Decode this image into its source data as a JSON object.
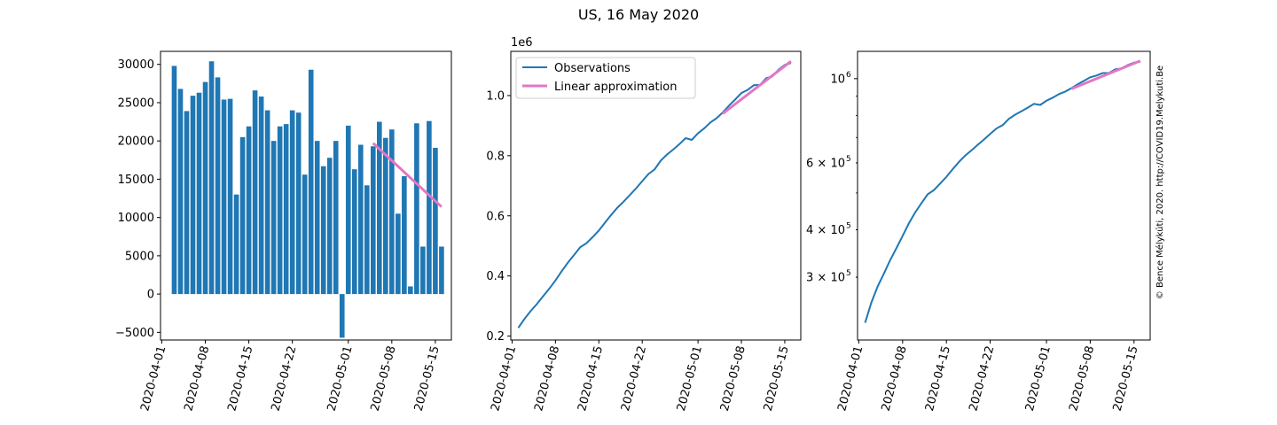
{
  "figure": {
    "suptitle": "US, 16 May 2020",
    "watermark": "© Bence Mélykúti, 2020. http://COVID19.Melykuti.Be"
  },
  "colors": {
    "observations": "#1f77b4",
    "approximation": "#e377c2",
    "watermark": "#c8c8c8"
  },
  "chart_data": [
    {
      "type": "bar",
      "title": "",
      "xlabel": "",
      "ylabel": "",
      "x_start": "2020-04-03",
      "x": [
        "2020-04-03",
        "2020-04-04",
        "2020-04-05",
        "2020-04-06",
        "2020-04-07",
        "2020-04-08",
        "2020-04-09",
        "2020-04-10",
        "2020-04-11",
        "2020-04-12",
        "2020-04-13",
        "2020-04-14",
        "2020-04-15",
        "2020-04-16",
        "2020-04-17",
        "2020-04-18",
        "2020-04-19",
        "2020-04-20",
        "2020-04-21",
        "2020-04-22",
        "2020-04-23",
        "2020-04-24",
        "2020-04-25",
        "2020-04-26",
        "2020-04-27",
        "2020-04-28",
        "2020-04-29",
        "2020-04-30",
        "2020-05-01",
        "2020-05-02",
        "2020-05-03",
        "2020-05-04",
        "2020-05-05",
        "2020-05-06",
        "2020-05-07",
        "2020-05-08",
        "2020-05-09",
        "2020-05-10",
        "2020-05-11",
        "2020-05-12",
        "2020-05-13",
        "2020-05-14",
        "2020-05-15",
        "2020-05-16"
      ],
      "values": [
        29800,
        26800,
        23900,
        25900,
        26300,
        27700,
        30400,
        28300,
        25400,
        25500,
        13000,
        20500,
        21900,
        26600,
        25800,
        24000,
        20000,
        21900,
        22200,
        24000,
        23700,
        15600,
        29300,
        20000,
        16700,
        17800,
        20000,
        -5700,
        22000,
        16300,
        19500,
        14200,
        19300,
        22500,
        20400,
        21500,
        10500,
        15400,
        1000,
        22300,
        6200,
        22600,
        19100,
        6200
      ],
      "trend": {
        "name": "",
        "x": [
          "2020-05-05",
          "2020-05-16"
        ],
        "values": [
          19700,
          11400
        ]
      },
      "ylim": [
        -6000,
        31700
      ],
      "xlim": [
        "2020-03-31T19:00",
        "2020-05-17T14:00"
      ],
      "yticks": [
        -5000,
        0,
        5000,
        10000,
        15000,
        20000,
        25000,
        30000
      ],
      "ytick_labels": [
        "−5000",
        "0",
        "5000",
        "10000",
        "15000",
        "20000",
        "25000",
        "30000"
      ],
      "xticks": [
        "2020-04-01",
        "2020-04-08",
        "2020-04-15",
        "2020-04-22",
        "2020-05-01",
        "2020-05-08",
        "2020-05-15"
      ],
      "xtick_labels": [
        "2020-04-01",
        "2020-04-08",
        "2020-04-15",
        "2020-04-22",
        "2020-05-01",
        "2020-05-08",
        "2020-05-15"
      ],
      "grid": false
    },
    {
      "type": "line",
      "title": "",
      "xlabel": "",
      "ylabel": "",
      "y_offset_label": "1e6",
      "series": [
        {
          "name": "Observations",
          "x": [
            "2020-04-02",
            "2020-04-03",
            "2020-04-04",
            "2020-04-05",
            "2020-04-06",
            "2020-04-07",
            "2020-04-08",
            "2020-04-09",
            "2020-04-10",
            "2020-04-11",
            "2020-04-12",
            "2020-04-13",
            "2020-04-14",
            "2020-04-15",
            "2020-04-16",
            "2020-04-17",
            "2020-04-18",
            "2020-04-19",
            "2020-04-20",
            "2020-04-21",
            "2020-04-22",
            "2020-04-23",
            "2020-04-24",
            "2020-04-25",
            "2020-04-26",
            "2020-04-27",
            "2020-04-28",
            "2020-04-29",
            "2020-04-30",
            "2020-05-01",
            "2020-05-02",
            "2020-05-03",
            "2020-05-04",
            "2020-05-05",
            "2020-05-06",
            "2020-05-07",
            "2020-05-08",
            "2020-05-09",
            "2020-05-10",
            "2020-05-11",
            "2020-05-12",
            "2020-05-13",
            "2020-05-14",
            "2020-05-15",
            "2020-05-16"
          ],
          "values": [
            0.2275,
            0.2572,
            0.2834,
            0.3066,
            0.3325,
            0.3576,
            0.3853,
            0.4158,
            0.4442,
            0.4696,
            0.4958,
            0.5088,
            0.5293,
            0.5512,
            0.5774,
            0.6032,
            0.6273,
            0.6472,
            0.6691,
            0.6913,
            0.7153,
            0.739,
            0.7546,
            0.7839,
            0.8039,
            0.8206,
            0.8384,
            0.8584,
            0.8527,
            0.8747,
            0.891,
            0.9105,
            0.9247,
            0.944,
            0.9665,
            0.9869,
            1.0084,
            1.0189,
            1.0343,
            1.0353,
            1.0576,
            1.0638,
            1.0864,
            1.1019,
            1.1081
          ]
        },
        {
          "name": "Linear approximation",
          "x": [
            "2020-05-05",
            "2020-05-16"
          ],
          "values": [
            0.94,
            1.114
          ]
        }
      ],
      "legend": "top-left",
      "ylim": [
        0.187,
        1.147
      ],
      "xlim": [
        "2020-03-31T19:00",
        "2020-05-17T14:00"
      ],
      "yticks": [
        0.2,
        0.4,
        0.6,
        0.8,
        1.0
      ],
      "ytick_labels": [
        "0.2",
        "0.4",
        "0.6",
        "0.8",
        "1.0"
      ],
      "xticks": [
        "2020-04-01",
        "2020-04-08",
        "2020-04-15",
        "2020-04-22",
        "2020-05-01",
        "2020-05-08",
        "2020-05-15"
      ],
      "xtick_labels": [
        "2020-04-01",
        "2020-04-08",
        "2020-04-15",
        "2020-04-22",
        "2020-05-01",
        "2020-05-08",
        "2020-05-15"
      ],
      "grid": false
    },
    {
      "type": "line",
      "title": "",
      "xlabel": "",
      "ylabel": "",
      "yscale": "log",
      "series": [
        {
          "name": "Observations",
          "x": "same as panel 2",
          "values": "same as panel 2 (×1e6)"
        },
        {
          "name": "Linear approximation",
          "x": "same as panel 2",
          "values": "same as panel 2 (×1e6)"
        }
      ],
      "ylim": [
        205000,
        1180000
      ],
      "xlim": [
        "2020-03-31T19:00",
        "2020-05-17T14:00"
      ],
      "yticks": [
        300000,
        400000,
        600000,
        1000000
      ],
      "ytick_labels_base": [
        "3 × 10",
        "4 × 10",
        "6 × 10",
        "10"
      ],
      "ytick_labels_exp": [
        "5",
        "5",
        "5",
        "6"
      ],
      "xticks": [
        "2020-04-01",
        "2020-04-08",
        "2020-04-15",
        "2020-04-22",
        "2020-05-01",
        "2020-05-08",
        "2020-05-15"
      ],
      "xtick_labels": [
        "2020-04-01",
        "2020-04-08",
        "2020-04-15",
        "2020-04-22",
        "2020-05-01",
        "2020-05-08",
        "2020-05-15"
      ],
      "grid": false
    }
  ]
}
